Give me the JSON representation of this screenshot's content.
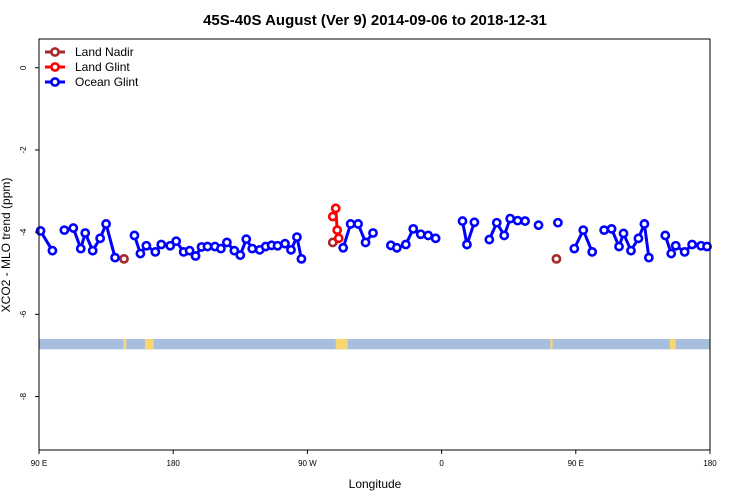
{
  "chart_data": {
    "type": "line",
    "title": "45S-40S August (Ver 9)   2014-09-06 to 2018-12-31",
    "xlabel": "Longitude",
    "ylabel": "XCO2 - MLO trend (ppm)",
    "xlim": [
      90,
      540
    ],
    "ylim": [
      -9.3,
      0.7
    ],
    "x_ticks": [
      {
        "value": 90,
        "label": "90 E"
      },
      {
        "value": 180,
        "label": "180"
      },
      {
        "value": 270,
        "label": "90 W"
      },
      {
        "value": 360,
        "label": "0"
      },
      {
        "value": 450,
        "label": "90 E"
      },
      {
        "value": 540,
        "label": "180"
      }
    ],
    "y_ticks": [
      {
        "value": 0,
        "label": "0"
      },
      {
        "value": -2,
        "label": "-2"
      },
      {
        "value": -4,
        "label": "-4"
      },
      {
        "value": -6,
        "label": "-6"
      },
      {
        "value": -8,
        "label": "-8"
      }
    ],
    "legend": {
      "position": "top-left"
    },
    "land_band": {
      "y_range": [
        -6.85,
        -6.6
      ],
      "ocean_color": "#a8bedf",
      "land_color": "#f7d774",
      "land_spans": [
        [
          146.5,
          148.5
        ],
        [
          161,
          167
        ],
        [
          289,
          297
        ],
        [
          433,
          434.5
        ],
        [
          513,
          517
        ]
      ]
    },
    "series": [
      {
        "name": "Land Nadir",
        "color": "#a52a2a",
        "segments": [
          [
            [
              147,
              -4.65
            ]
          ],
          [
            [
              287,
              -4.25
            ]
          ],
          [
            [
              437,
              -4.65
            ]
          ]
        ]
      },
      {
        "name": "Land Glint",
        "color": "#ff0000",
        "segments": [
          [
            [
              287,
              -3.62
            ],
            [
              289,
              -3.42
            ],
            [
              290,
              -3.95
            ],
            [
              291,
              -4.15
            ]
          ]
        ]
      },
      {
        "name": "Ocean Glint",
        "color": "#0000ff",
        "segments": [
          [
            [
              91,
              -3.97
            ],
            [
              99,
              -4.45
            ]
          ],
          [
            [
              107,
              -3.95
            ],
            [
              113,
              -3.9
            ],
            [
              118,
              -4.4
            ],
            [
              121,
              -4.02
            ],
            [
              126,
              -4.45
            ],
            [
              131,
              -4.15
            ],
            [
              135,
              -3.8
            ],
            [
              141,
              -4.62
            ]
          ],
          [
            [
              154,
              -4.08
            ],
            [
              158,
              -4.52
            ],
            [
              162,
              -4.33
            ],
            [
              168,
              -4.48
            ],
            [
              172,
              -4.3
            ],
            [
              178,
              -4.33
            ],
            [
              182,
              -4.22
            ],
            [
              187,
              -4.48
            ],
            [
              191,
              -4.45
            ],
            [
              195,
              -4.58
            ],
            [
              199,
              -4.36
            ],
            [
              203,
              -4.35
            ],
            [
              208,
              -4.35
            ],
            [
              212,
              -4.4
            ],
            [
              216,
              -4.25
            ],
            [
              221,
              -4.45
            ],
            [
              225,
              -4.56
            ],
            [
              229,
              -4.17
            ],
            [
              233,
              -4.4
            ],
            [
              238,
              -4.43
            ],
            [
              242,
              -4.35
            ],
            [
              246,
              -4.32
            ],
            [
              250,
              -4.33
            ],
            [
              255,
              -4.28
            ],
            [
              259,
              -4.43
            ],
            [
              263,
              -4.12
            ],
            [
              266,
              -4.65
            ]
          ],
          [
            [
              294,
              -4.38
            ],
            [
              299,
              -3.8
            ],
            [
              304,
              -3.8
            ],
            [
              309,
              -4.25
            ],
            [
              314,
              -4.02
            ]
          ],
          [
            [
              326,
              -4.32
            ],
            [
              330,
              -4.38
            ],
            [
              336,
              -4.3
            ],
            [
              341,
              -3.92
            ],
            [
              346,
              -4.05
            ],
            [
              351,
              -4.08
            ],
            [
              356,
              -4.15
            ]
          ],
          [
            [
              374,
              -3.73
            ],
            [
              377,
              -4.3
            ],
            [
              382,
              -3.76
            ]
          ],
          [
            [
              392,
              -4.18
            ],
            [
              397,
              -3.77
            ],
            [
              402,
              -4.08
            ],
            [
              406,
              -3.67
            ],
            [
              411,
              -3.72
            ],
            [
              416,
              -3.73
            ]
          ],
          [
            [
              425,
              -3.83
            ]
          ],
          [
            [
              438,
              -3.77
            ]
          ],
          [
            [
              449,
              -4.4
            ],
            [
              455,
              -3.95
            ],
            [
              461,
              -4.48
            ]
          ],
          [
            [
              469,
              -3.95
            ],
            [
              474,
              -3.92
            ],
            [
              479,
              -4.35
            ],
            [
              482,
              -4.03
            ],
            [
              487,
              -4.45
            ],
            [
              492,
              -4.15
            ],
            [
              496,
              -3.8
            ],
            [
              499,
              -4.62
            ]
          ],
          [
            [
              510,
              -4.08
            ],
            [
              514,
              -4.52
            ],
            [
              517,
              -4.33
            ],
            [
              523,
              -4.48
            ],
            [
              528,
              -4.3
            ],
            [
              534,
              -4.33
            ],
            [
              538,
              -4.35
            ]
          ]
        ]
      }
    ]
  }
}
